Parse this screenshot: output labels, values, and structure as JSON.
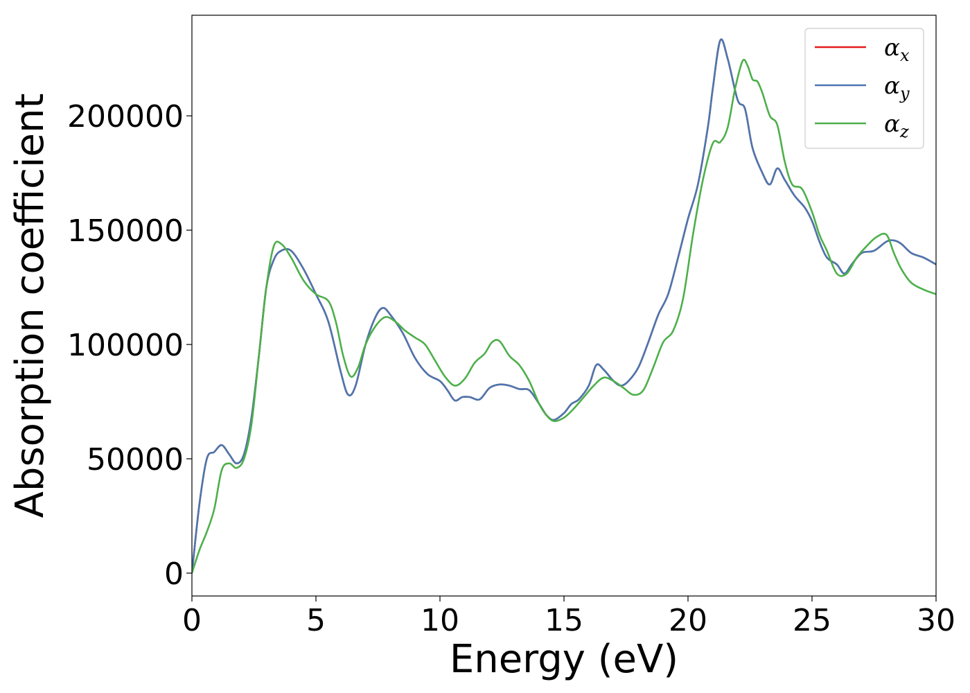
{
  "chart_data": {
    "type": "line",
    "xlabel": "Energy (eV)",
    "ylabel": "Absorption coefficient",
    "xlim": [
      0,
      30
    ],
    "ylim": [
      -10000,
      244000
    ],
    "xticks": [
      0,
      5,
      10,
      15,
      20,
      25,
      30
    ],
    "xtick_labels": [
      "0",
      "5",
      "10",
      "15",
      "20",
      "25",
      "30"
    ],
    "yticks": [
      0,
      50000,
      100000,
      150000,
      200000
    ],
    "ytick_labels": [
      "0",
      "50000",
      "100000",
      "150000",
      "200000"
    ],
    "grid": false,
    "legend_position": "top-right",
    "series": [
      {
        "name": "α_x",
        "symbol": "α",
        "subscript": "x",
        "color": "#e41a1c",
        "x": [
          0,
          0.3,
          0.6,
          0.9,
          1.2,
          1.5,
          1.8,
          2.1,
          2.4,
          2.7,
          3.0,
          3.3,
          3.6,
          4.0,
          4.5,
          5.0,
          5.5,
          6.0,
          6.3,
          6.6,
          7.0,
          7.4,
          7.7,
          8.0,
          8.5,
          9.0,
          9.5,
          10.0,
          10.3,
          10.6,
          10.9,
          11.2,
          11.6,
          12.0,
          12.4,
          12.8,
          13.2,
          13.6,
          14.0,
          14.3,
          14.6,
          15.0,
          15.3,
          15.6,
          16.0,
          16.3,
          16.6,
          17.0,
          17.3,
          17.6,
          18.0,
          18.4,
          18.8,
          19.2,
          19.6,
          20.0,
          20.4,
          20.8,
          21.0,
          21.3,
          21.6,
          22.0,
          22.3,
          22.6,
          23.0,
          23.3,
          23.6,
          23.9,
          24.3,
          24.7,
          25.0,
          25.3,
          25.6,
          26.0,
          26.3,
          26.6,
          27.0,
          27.5,
          28.0,
          28.3,
          28.6,
          29.0,
          29.5,
          30.0
        ],
        "y": [
          0,
          30000,
          50000,
          53000,
          56000,
          52000,
          48000,
          52000,
          68000,
          95000,
          125000,
          137000,
          141000,
          141000,
          133000,
          122000,
          110000,
          88000,
          78000,
          82000,
          100000,
          112000,
          116000,
          113000,
          105000,
          94000,
          87000,
          84000,
          80000,
          75500,
          77000,
          77000,
          76000,
          81000,
          82500,
          82000,
          80500,
          80000,
          74000,
          69000,
          67000,
          70000,
          74000,
          76000,
          82000,
          91000,
          89000,
          84000,
          82000,
          84000,
          90000,
          101000,
          113000,
          122000,
          138000,
          155000,
          170000,
          195000,
          212000,
          233000,
          225000,
          207000,
          203000,
          186000,
          175000,
          170000,
          177000,
          172000,
          165000,
          160000,
          154000,
          145000,
          138000,
          135000,
          131000,
          135000,
          140000,
          141000,
          145000,
          145500,
          144000,
          140000,
          138000,
          135000
        ]
      },
      {
        "name": "α_y",
        "symbol": "α",
        "subscript": "y",
        "color": "#4a77b0",
        "x": [
          0,
          0.3,
          0.6,
          0.9,
          1.2,
          1.5,
          1.8,
          2.1,
          2.4,
          2.7,
          3.0,
          3.3,
          3.6,
          4.0,
          4.5,
          5.0,
          5.5,
          6.0,
          6.3,
          6.6,
          7.0,
          7.4,
          7.7,
          8.0,
          8.5,
          9.0,
          9.5,
          10.0,
          10.3,
          10.6,
          10.9,
          11.2,
          11.6,
          12.0,
          12.4,
          12.8,
          13.2,
          13.6,
          14.0,
          14.3,
          14.6,
          15.0,
          15.3,
          15.6,
          16.0,
          16.3,
          16.6,
          17.0,
          17.3,
          17.6,
          18.0,
          18.4,
          18.8,
          19.2,
          19.6,
          20.0,
          20.4,
          20.8,
          21.0,
          21.3,
          21.6,
          22.0,
          22.3,
          22.6,
          23.0,
          23.3,
          23.6,
          23.9,
          24.3,
          24.7,
          25.0,
          25.3,
          25.6,
          26.0,
          26.3,
          26.6,
          27.0,
          27.5,
          28.0,
          28.3,
          28.6,
          29.0,
          29.5,
          30.0
        ],
        "y": [
          0,
          30000,
          50000,
          53000,
          56000,
          52000,
          48000,
          52000,
          68000,
          95000,
          125000,
          137000,
          141000,
          141000,
          133000,
          122000,
          110000,
          88000,
          78000,
          82000,
          100000,
          112000,
          116000,
          113000,
          105000,
          94000,
          87000,
          84000,
          80000,
          75500,
          77000,
          77000,
          76000,
          81000,
          82500,
          82000,
          80500,
          80000,
          74000,
          69000,
          67000,
          70000,
          74000,
          76000,
          82000,
          91000,
          89000,
          84000,
          82000,
          84000,
          90000,
          101000,
          113000,
          122000,
          138000,
          155000,
          170000,
          195000,
          212000,
          233000,
          225000,
          207000,
          203000,
          186000,
          175000,
          170000,
          177000,
          172000,
          165000,
          160000,
          154000,
          145000,
          138000,
          135000,
          131000,
          135000,
          140000,
          141000,
          145000,
          145500,
          144000,
          140000,
          138000,
          135000
        ]
      },
      {
        "name": "α_z",
        "symbol": "α",
        "subscript": "z",
        "color": "#4daf4a",
        "x": [
          0,
          0.3,
          0.6,
          0.9,
          1.2,
          1.5,
          1.8,
          2.1,
          2.4,
          2.7,
          3.0,
          3.3,
          3.6,
          4.0,
          4.5,
          5.0,
          5.5,
          5.8,
          6.1,
          6.4,
          6.7,
          7.0,
          7.4,
          7.8,
          8.2,
          8.6,
          9.0,
          9.4,
          9.8,
          10.2,
          10.6,
          11.0,
          11.4,
          11.8,
          12.1,
          12.4,
          12.8,
          13.2,
          13.6,
          14.0,
          14.3,
          14.6,
          15.0,
          15.4,
          15.8,
          16.2,
          16.6,
          17.0,
          17.4,
          17.8,
          18.2,
          18.6,
          19.0,
          19.4,
          19.8,
          20.2,
          20.6,
          21.0,
          21.3,
          21.6,
          21.9,
          22.2,
          22.4,
          22.6,
          22.8,
          23.0,
          23.3,
          23.6,
          23.9,
          24.2,
          24.6,
          25.0,
          25.3,
          25.6,
          26.0,
          26.4,
          26.8,
          27.2,
          27.6,
          28.0,
          28.3,
          28.6,
          29.0,
          29.5,
          30.0
        ],
        "y": [
          0,
          10000,
          18000,
          28000,
          45000,
          48000,
          46000,
          50000,
          65000,
          95000,
          125000,
          143000,
          144000,
          138000,
          128000,
          122000,
          119000,
          110000,
          95000,
          86000,
          90000,
          100000,
          108000,
          112000,
          110000,
          106000,
          103000,
          100000,
          93000,
          86000,
          82000,
          85000,
          92000,
          96000,
          101000,
          101500,
          95000,
          91000,
          84000,
          74000,
          69000,
          66500,
          68000,
          72000,
          77000,
          82000,
          85500,
          84000,
          81000,
          78000,
          80000,
          90000,
          101000,
          106000,
          120000,
          148000,
          172000,
          188000,
          188500,
          195000,
          212000,
          224000,
          222000,
          216000,
          215000,
          210000,
          200000,
          196000,
          180000,
          170000,
          168000,
          158000,
          148000,
          141000,
          131000,
          131000,
          138000,
          143000,
          147000,
          148000,
          140000,
          133000,
          127000,
          124000,
          122000
        ]
      }
    ]
  }
}
